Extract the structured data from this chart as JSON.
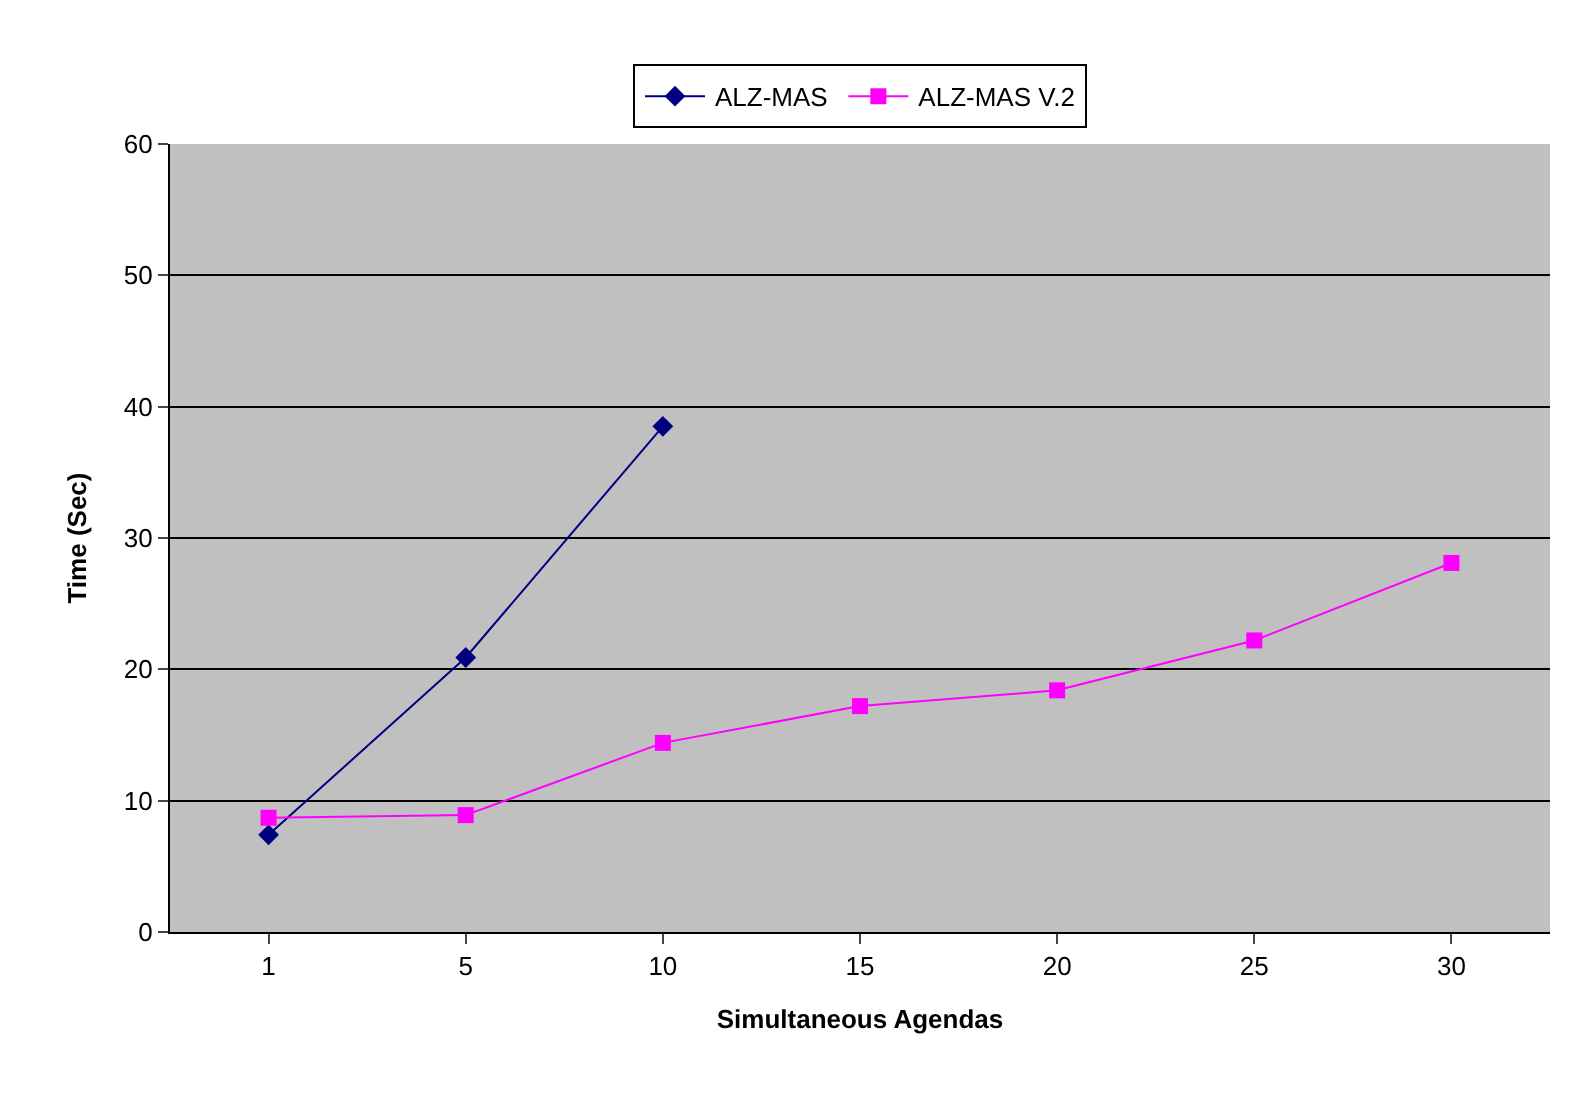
{
  "chart_data": {
    "type": "line",
    "xlabel": "Simultaneous Agendas",
    "ylabel": "Time (Sec)",
    "categories": [
      "1",
      "5",
      "10",
      "15",
      "20",
      "25",
      "30"
    ],
    "series": [
      {
        "name": "ALZ-MAS",
        "color": "#000080",
        "marker": "diamond",
        "values": [
          7.4,
          20.9,
          38.5,
          null,
          null,
          null,
          null
        ]
      },
      {
        "name": "ALZ-MAS V.2",
        "color": "#ff00ff",
        "marker": "square",
        "values": [
          8.7,
          8.9,
          14.4,
          17.2,
          18.4,
          22.2,
          28.1
        ]
      }
    ],
    "ylim": [
      0,
      60
    ],
    "yticks": [
      0,
      10,
      20,
      30,
      40,
      50,
      60
    ],
    "grid": "y",
    "legend": "top",
    "line_style": "solid"
  }
}
